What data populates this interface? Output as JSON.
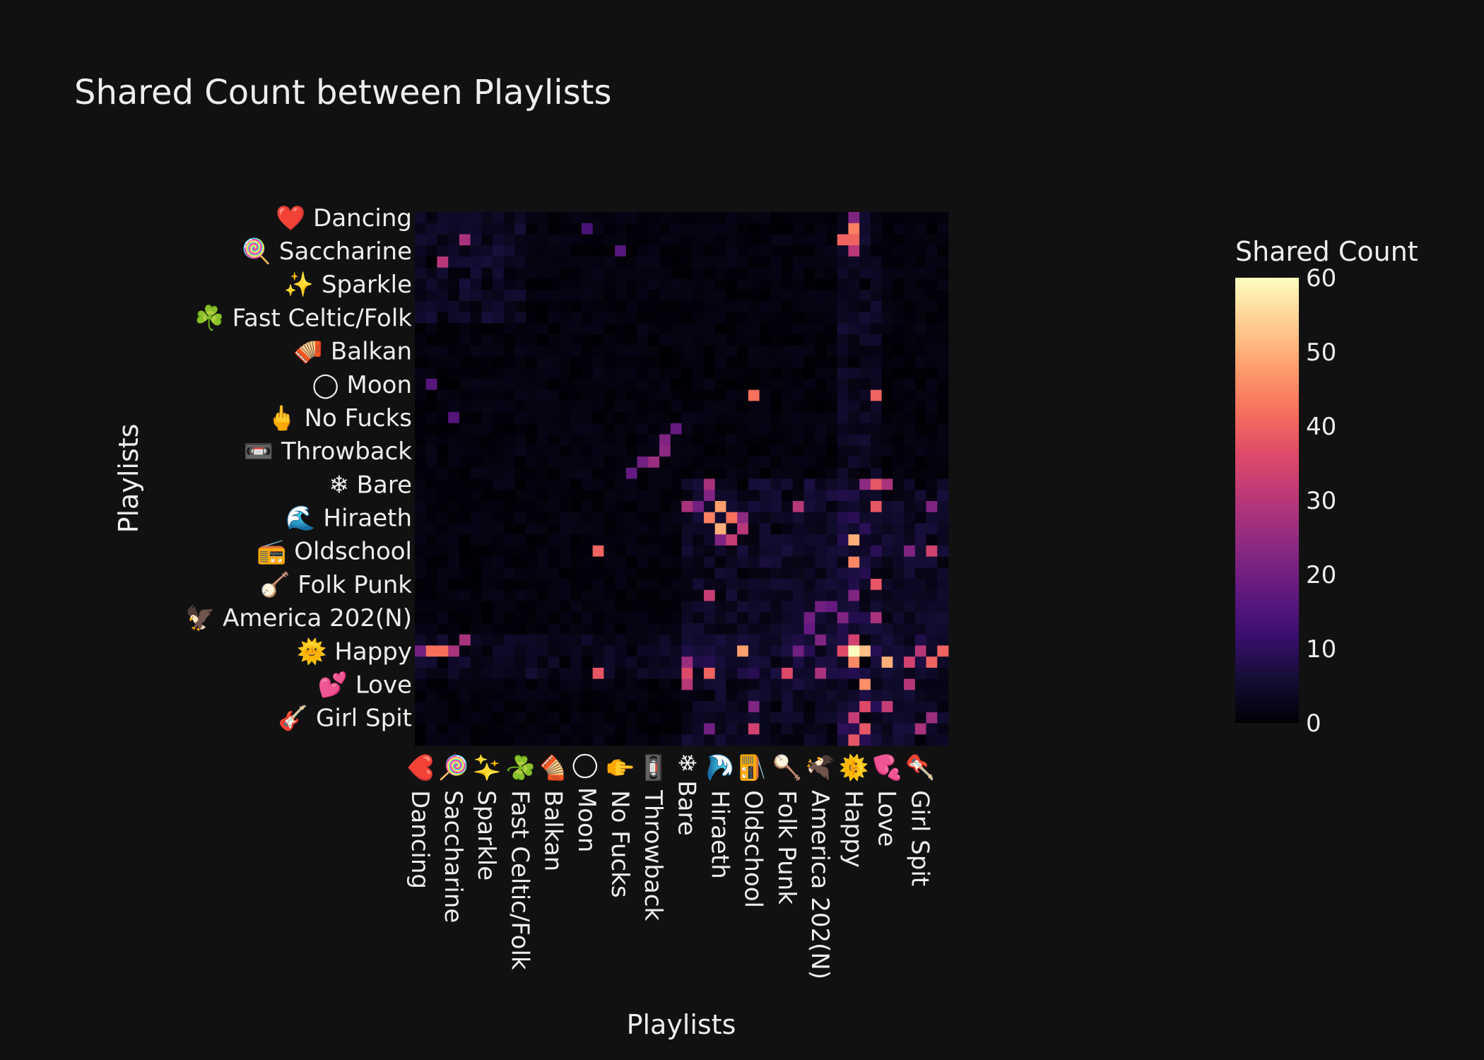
{
  "chart_data": {
    "type": "heatmap",
    "title": "Shared Count between Playlists",
    "xlabel": "Playlists",
    "ylabel": "Playlists",
    "colorbar": {
      "title": "Shared Count",
      "range": [
        0,
        60
      ],
      "ticks": [
        0,
        10,
        20,
        30,
        40,
        50,
        60
      ],
      "colorscale": "magma",
      "stops": [
        [
          0,
          "#000004"
        ],
        [
          0.1,
          "#140e36"
        ],
        [
          0.2,
          "#3b0f70"
        ],
        [
          0.3,
          "#641a80"
        ],
        [
          0.4,
          "#8c2981"
        ],
        [
          0.5,
          "#b73779"
        ],
        [
          0.6,
          "#de4968"
        ],
        [
          0.7,
          "#f7705c"
        ],
        [
          0.8,
          "#fe9f6d"
        ],
        [
          0.9,
          "#fecf92"
        ],
        [
          1.0,
          "#fcfdbf"
        ]
      ]
    },
    "grid_size": 48,
    "tick_labels": [
      "❤️ Dancing",
      "🍭 Saccharine",
      "✨ Sparkle",
      "☘️ Fast Celtic/Folk",
      "🪗 Balkan",
      "◯ Moon",
      "🖕 No Fucks",
      "📼 Throwback",
      "❄ Bare",
      "🌊 Hiraeth",
      "📻 Oldschool",
      "🪕 Folk Punk",
      "🦅 America 202(N)",
      "🌞 Happy",
      "💕 Love",
      "🎸 Girl Spit"
    ],
    "tick_positions": [
      0.5,
      3.5,
      6.5,
      9.5,
      12.5,
      15.5,
      18.5,
      21.5,
      24.5,
      27.5,
      30.5,
      33.5,
      36.5,
      39.5,
      42.5,
      45.5
    ],
    "hot_cells": [
      [
        39,
        39,
        60
      ],
      [
        40,
        39,
        45
      ],
      [
        39,
        40,
        52
      ],
      [
        27,
        28,
        42
      ],
      [
        28,
        27,
        50
      ],
      [
        26,
        27,
        48
      ],
      [
        27,
        26,
        44
      ],
      [
        40,
        40,
        0
      ],
      [
        29,
        39,
        50
      ],
      [
        39,
        29,
        48
      ],
      [
        40,
        42,
        50
      ],
      [
        42,
        40,
        46
      ],
      [
        31,
        39,
        45
      ],
      [
        47,
        39,
        38
      ],
      [
        39,
        47,
        40
      ],
      [
        41,
        26,
        40
      ],
      [
        26,
        41,
        38
      ],
      [
        33,
        41,
        38
      ],
      [
        41,
        33,
        36
      ],
      [
        16,
        41,
        40
      ],
      [
        41,
        16,
        38
      ],
      [
        16,
        30,
        42
      ],
      [
        30,
        16,
        40
      ],
      [
        24,
        41,
        38
      ],
      [
        41,
        24,
        36
      ],
      [
        39,
        2,
        42
      ],
      [
        2,
        39,
        40
      ],
      [
        38,
        39,
        34
      ],
      [
        39,
        38,
        36
      ],
      [
        2,
        38,
        40
      ],
      [
        4,
        2,
        30
      ],
      [
        2,
        4,
        28
      ],
      [
        38,
        4,
        28
      ],
      [
        40,
        44,
        34
      ],
      [
        44,
        40,
        36
      ],
      [
        40,
        46,
        40
      ],
      [
        46,
        40,
        38
      ],
      [
        44,
        42,
        32
      ],
      [
        42,
        44,
        30
      ],
      [
        36,
        41,
        28
      ],
      [
        41,
        36,
        28
      ],
      [
        34,
        26,
        32
      ],
      [
        26,
        34,
        30
      ],
      [
        24,
        26,
        28
      ],
      [
        26,
        24,
        28
      ],
      [
        21,
        22,
        24
      ],
      [
        22,
        21,
        26
      ],
      [
        20,
        22,
        22
      ],
      [
        22,
        20,
        20
      ],
      [
        19,
        23,
        18
      ],
      [
        23,
        19,
        18
      ],
      [
        18,
        3,
        16
      ],
      [
        3,
        18,
        16
      ],
      [
        15,
        1,
        16
      ],
      [
        1,
        15,
        14
      ],
      [
        0,
        39,
        22
      ],
      [
        39,
        0,
        20
      ],
      [
        1,
        39,
        44
      ],
      [
        39,
        1,
        42
      ],
      [
        3,
        39,
        30
      ],
      [
        39,
        3,
        28
      ],
      [
        38,
        36,
        22
      ],
      [
        36,
        38,
        22
      ],
      [
        24,
        42,
        28
      ],
      [
        42,
        24,
        30
      ],
      [
        24,
        40,
        24
      ],
      [
        40,
        24,
        26
      ],
      [
        30,
        46,
        34
      ],
      [
        46,
        30,
        34
      ],
      [
        26,
        46,
        22
      ],
      [
        46,
        26,
        20
      ],
      [
        45,
        46,
        26
      ],
      [
        46,
        45,
        28
      ],
      [
        45,
        39,
        32
      ],
      [
        39,
        45,
        30
      ],
      [
        28,
        29,
        30
      ],
      [
        29,
        28,
        32
      ],
      [
        27,
        29,
        24
      ],
      [
        29,
        27,
        22
      ],
      [
        25,
        26,
        22
      ],
      [
        26,
        25,
        20
      ],
      [
        30,
        44,
        22
      ],
      [
        44,
        30,
        22
      ],
      [
        35,
        36,
        20
      ],
      [
        36,
        35,
        20
      ],
      [
        37,
        35,
        18
      ],
      [
        35,
        37,
        18
      ],
      [
        34,
        39,
        22
      ],
      [
        39,
        34,
        20
      ]
    ]
  }
}
